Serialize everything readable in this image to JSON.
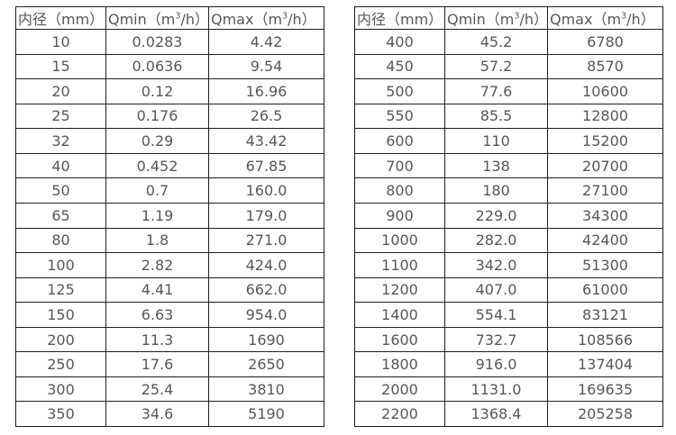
{
  "colors": {
    "background": "#ffffff",
    "border": "#1e1e1e",
    "text": "#57575a"
  },
  "headers": [
    {
      "before": "内径（mm）",
      "sup": "",
      "after": ""
    },
    {
      "before": "Qmin（m",
      "sup": "3",
      "after": "/h）"
    },
    {
      "before": "Qmax（m",
      "sup": "3",
      "after": "/h）"
    }
  ],
  "tables": [
    {
      "name": "small-diameter-flow-ranges",
      "rows": [
        [
          "10",
          "0.0283",
          "4.42"
        ],
        [
          "15",
          "0.0636",
          "9.54"
        ],
        [
          "20",
          "0.12",
          "16.96"
        ],
        [
          "25",
          "0.176",
          "26.5"
        ],
        [
          "32",
          "0.29",
          "43.42"
        ],
        [
          "40",
          "0.452",
          "67.85"
        ],
        [
          "50",
          "0.7",
          "160.0"
        ],
        [
          "65",
          "1.19",
          "179.0"
        ],
        [
          "80",
          "1.8",
          "271.0"
        ],
        [
          "100",
          "2.82",
          "424.0"
        ],
        [
          "125",
          "4.41",
          "662.0"
        ],
        [
          "150",
          "6.63",
          "954.0"
        ],
        [
          "200",
          "11.3",
          "1690"
        ],
        [
          "250",
          "17.6",
          "2650"
        ],
        [
          "300",
          "25.4",
          "3810"
        ],
        [
          "350",
          "34.6",
          "5190"
        ]
      ]
    },
    {
      "name": "large-diameter-flow-ranges",
      "rows": [
        [
          "400",
          "45.2",
          "6780"
        ],
        [
          "450",
          "57.2",
          "8570"
        ],
        [
          "500",
          "77.6",
          "10600"
        ],
        [
          "550",
          "85.5",
          "12800"
        ],
        [
          "600",
          "110",
          "15200"
        ],
        [
          "700",
          "138",
          "20700"
        ],
        [
          "800",
          "180",
          "27100"
        ],
        [
          "900",
          "229.0",
          "34300"
        ],
        [
          "1000",
          "282.0",
          "42400"
        ],
        [
          "1100",
          "342.0",
          "51300"
        ],
        [
          "1200",
          "407.0",
          "61000"
        ],
        [
          "1400",
          "554.1",
          "83121"
        ],
        [
          "1600",
          "732.7",
          "108566"
        ],
        [
          "1800",
          "916.0",
          "137404"
        ],
        [
          "2000",
          "1131.0",
          "169635"
        ],
        [
          "2200",
          "1368.4",
          "205258"
        ]
      ]
    }
  ]
}
